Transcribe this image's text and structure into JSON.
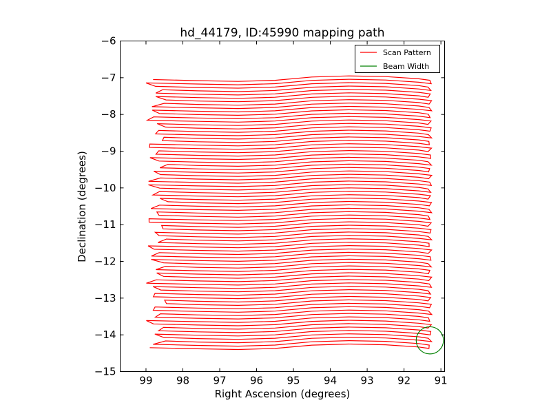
{
  "chart_data": {
    "type": "line",
    "title": "hd_44179, ID:45990 mapping path",
    "xlabel": "Right Ascension (degrees)",
    "ylabel": "Declination (degrees)",
    "xlim": [
      99.7,
      90.9
    ],
    "ylim": [
      -15,
      -6
    ],
    "x_inverted": true,
    "xticks": [
      99,
      98,
      97,
      96,
      95,
      94,
      93,
      92,
      91
    ],
    "yticks": [
      -6,
      -7,
      -8,
      -9,
      -10,
      -11,
      -12,
      -13,
      -14,
      -15
    ],
    "grid": false,
    "legend": {
      "location": "top-right",
      "entries": [
        "Scan Pattern",
        "Beam Width"
      ]
    },
    "series": [
      {
        "name": "Scan Pattern",
        "color": "#ff0000",
        "style": "raster scan, back-and-forth rows",
        "ra_range": [
          98.7,
          91.3
        ],
        "dec_start": -7.05,
        "dec_end": -14.35,
        "row_count": 80,
        "shape_points": [
          {
            "ra": 98.7,
            "offset": 0.0
          },
          {
            "ra": 97.6,
            "offset": -0.03
          },
          {
            "ra": 96.5,
            "offset": -0.05
          },
          {
            "ra": 95.5,
            "offset": -0.02
          },
          {
            "ra": 94.5,
            "offset": 0.07
          },
          {
            "ra": 93.5,
            "offset": 0.1
          },
          {
            "ra": 92.5,
            "offset": 0.08
          },
          {
            "ra": 91.6,
            "offset": 0.02
          },
          {
            "ra": 91.3,
            "offset": -0.02
          }
        ]
      },
      {
        "name": "Beam Width",
        "color": "#008000",
        "shape": "circle",
        "center_ra": 91.3,
        "center_dec": -14.15,
        "radius_deg": 0.37
      }
    ]
  }
}
